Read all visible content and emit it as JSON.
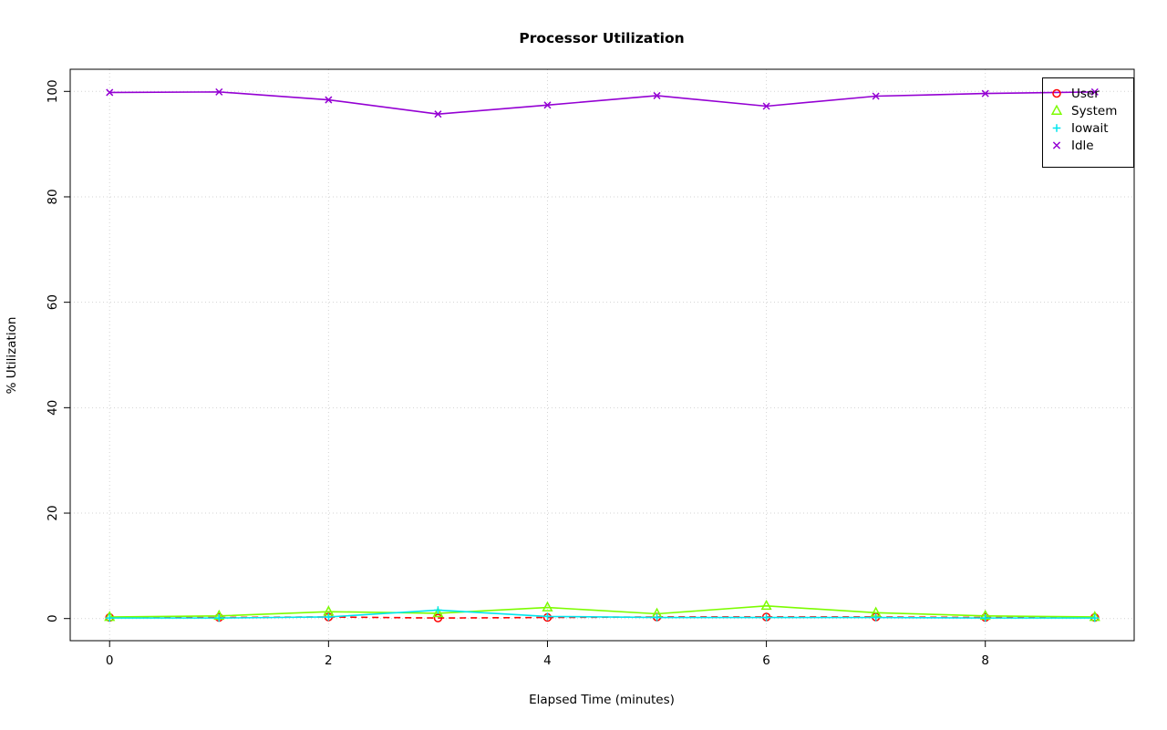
{
  "chart_data": {
    "type": "line",
    "title": "Processor Utilization",
    "xlabel": "Elapsed Time (minutes)",
    "ylabel": "% Utilization",
    "x": [
      0,
      1,
      2,
      3,
      4,
      5,
      6,
      7,
      8,
      9
    ],
    "xlim": [
      -0.36,
      9.36
    ],
    "ylim": [
      -4.2,
      104.2
    ],
    "xticks": [
      0,
      2,
      4,
      6,
      8
    ],
    "xtick_labels": [
      "0",
      "2",
      "4",
      "6",
      "8"
    ],
    "yticks": [
      0,
      20,
      40,
      60,
      80,
      100
    ],
    "ytick_labels": [
      "0",
      "20",
      "40",
      "60",
      "80",
      "100"
    ],
    "grid": true,
    "grid_color": "#d3d3d3",
    "legend_position": "top-right",
    "series": [
      {
        "name": "User",
        "color": "#ff0000",
        "marker": "circle",
        "line_style": "dashed",
        "values": [
          0.2,
          0.2,
          0.3,
          0.1,
          0.2,
          0.3,
          0.3,
          0.3,
          0.2,
          0.2
        ]
      },
      {
        "name": "System",
        "color": "#7cfc00",
        "marker": "triangle",
        "line_style": "solid",
        "values": [
          0.3,
          0.5,
          1.3,
          1.0,
          2.1,
          0.9,
          2.4,
          1.1,
          0.5,
          0.3
        ]
      },
      {
        "name": "Iowait",
        "color": "#00e5ee",
        "marker": "plus",
        "line_style": "solid",
        "values": [
          0.1,
          0.1,
          0.3,
          1.6,
          0.4,
          0.2,
          0.2,
          0.2,
          0.1,
          0.1
        ]
      },
      {
        "name": "Idle",
        "color": "#9400d3",
        "marker": "x",
        "line_style": "solid",
        "values": [
          99.8,
          99.9,
          98.4,
          95.7,
          97.4,
          99.2,
          97.2,
          99.1,
          99.6,
          99.9
        ]
      }
    ]
  }
}
